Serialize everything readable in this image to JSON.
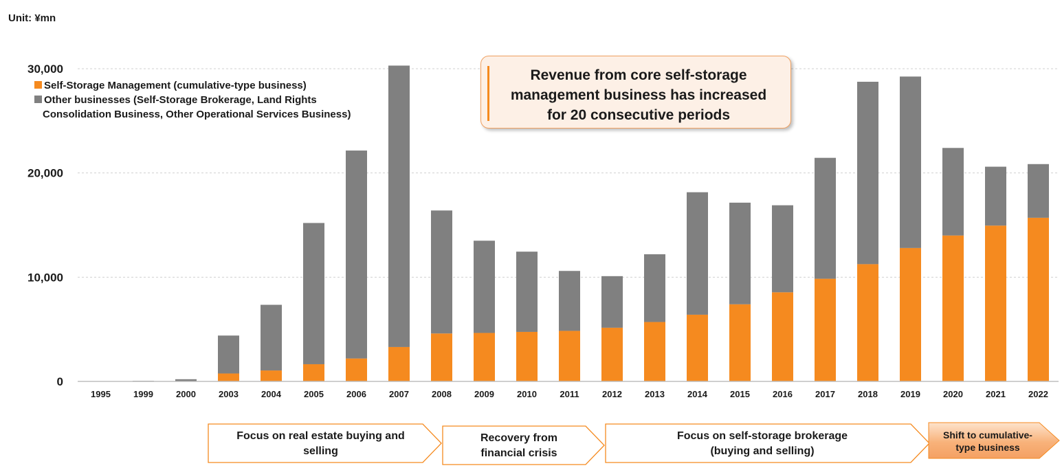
{
  "unit_label": "Unit: ¥mn",
  "callout_text": [
    "Revenue from core self-storage",
    "management business has increased",
    "for 20 consecutive periods"
  ],
  "legend": {
    "management": "Self-Storage Management (cumulative-type business)",
    "other_line1": "Other businesses (Self-Storage Brokerage, Land Rights",
    "other_line2": "Consolidation Business, Other Operational Services Business)"
  },
  "colors": {
    "management": "#f58a1f",
    "other": "#808080",
    "grid": "#d0d0d0",
    "accent": "#f58a1f"
  },
  "phases": [
    {
      "label": [
        "Focus on real estate buying and",
        "selling"
      ],
      "style": "outline"
    },
    {
      "label": [
        "Recovery from",
        "financial crisis"
      ],
      "style": "outline"
    },
    {
      "label": [
        "Focus on self-storage brokerage",
        "(buying and selling)"
      ],
      "style": "outline"
    },
    {
      "label": [
        "Shift to cumulative-",
        "type business"
      ],
      "style": "filled"
    }
  ],
  "chart_data": {
    "type": "bar",
    "stacked": true,
    "categories": [
      "1995",
      "1999",
      "2000",
      "2003",
      "2004",
      "2005",
      "2006",
      "2007",
      "2008",
      "2009",
      "2010",
      "2011",
      "2012",
      "2013",
      "2014",
      "2015",
      "2016",
      "2017",
      "2018",
      "2019",
      "2020",
      "2021",
      "2022"
    ],
    "series": [
      {
        "name": "Self-Storage Management (cumulative-type business)",
        "values": [
          0,
          0,
          0,
          760,
          1050,
          1650,
          2200,
          3300,
          4600,
          4650,
          4750,
          4850,
          5150,
          5700,
          6400,
          7400,
          8550,
          9850,
          11250,
          12800,
          14000,
          14950,
          15700
        ]
      },
      {
        "name": "Other businesses (Self-Storage Brokerage, Land Rights Consolidation Business, Other Operational Services Business)",
        "values": [
          0,
          60,
          210,
          3640,
          6300,
          13550,
          19950,
          27000,
          11800,
          8850,
          7700,
          5750,
          4950,
          6500,
          11750,
          9750,
          8350,
          11600,
          17500,
          16450,
          8400,
          5650,
          5150
        ]
      }
    ],
    "yticks": [
      "0",
      "10,000",
      "20,000",
      "30,000"
    ],
    "ylim": [
      0,
      30000
    ],
    "grid": true,
    "legend_position": "top-left"
  }
}
